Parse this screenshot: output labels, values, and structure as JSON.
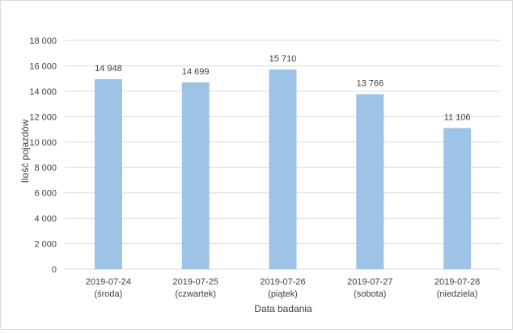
{
  "chart_data": {
    "type": "bar",
    "title": "",
    "xlabel": "Data badania",
    "ylabel": "Ilość pojazdów",
    "ylim": [
      0,
      18000
    ],
    "ytick_step": 2000,
    "ytick_labels": [
      "0",
      "2 000",
      "4 000",
      "6 000",
      "8 000",
      "10 000",
      "12 000",
      "14 000",
      "16 000",
      "18 000"
    ],
    "grid": true,
    "legend": "none",
    "bar_color": "#9dc3e6",
    "grid_color": "#d9d9d9",
    "categories": [
      {
        "date": "2019-07-24",
        "day": "(środa)"
      },
      {
        "date": "2019-07-25",
        "day": "(czwartek)"
      },
      {
        "date": "2019-07-26",
        "day": "(piątek)"
      },
      {
        "date": "2019-07-27",
        "day": "(sobota)"
      },
      {
        "date": "2019-07-28",
        "day": "(niedziela)"
      }
    ],
    "values": [
      14948,
      14699,
      15710,
      13766,
      11106
    ],
    "data_labels": [
      "14 948",
      "14 699",
      "15 710",
      "13 766",
      "11 106"
    ]
  }
}
